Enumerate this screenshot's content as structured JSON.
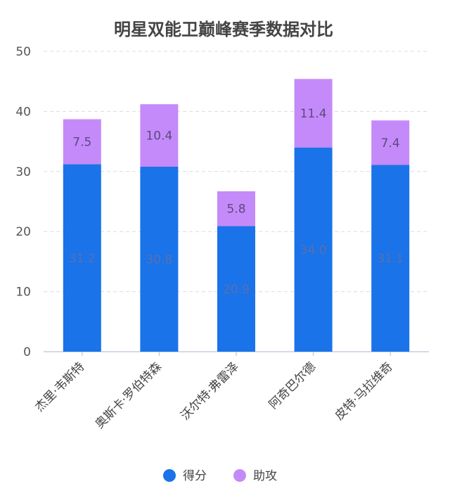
{
  "chart_data": {
    "type": "bar",
    "stacked": true,
    "title": "明星双能卫巅峰赛季数据对比",
    "categories": [
      "杰里·韦斯特",
      "奥斯卡·罗伯特森",
      "沃尔特·弗雷泽",
      "阿奇巴尔德",
      "皮特·马拉维奇"
    ],
    "series": [
      {
        "name": "得分",
        "color": "#1a73e8",
        "values": [
          31.2,
          30.8,
          20.9,
          34.0,
          31.1
        ]
      },
      {
        "name": "助攻",
        "color": "#c58af9",
        "values": [
          7.5,
          10.4,
          5.8,
          11.4,
          7.4
        ]
      }
    ],
    "yticks": [
      0,
      10,
      20,
      30,
      40,
      50
    ],
    "ylim": [
      0,
      50
    ],
    "grid": true,
    "legend_position": "bottom",
    "point_label_colors": [
      "#5a6fb0",
      "#5a4a80"
    ]
  }
}
